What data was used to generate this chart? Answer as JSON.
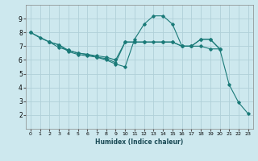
{
  "title": "",
  "xlabel": "Humidex (Indice chaleur)",
  "xlim": [
    -0.5,
    23.5
  ],
  "ylim": [
    1,
    10
  ],
  "xticks": [
    0,
    1,
    2,
    3,
    4,
    5,
    6,
    7,
    8,
    9,
    10,
    11,
    12,
    13,
    14,
    15,
    16,
    17,
    18,
    19,
    20,
    21,
    22,
    23
  ],
  "yticks": [
    2,
    3,
    4,
    5,
    6,
    7,
    8,
    9
  ],
  "bg_color": "#cde8ee",
  "grid_color": "#b0d0d8",
  "line_color": "#1a7a78",
  "lines": [
    {
      "x": [
        0,
        1,
        2,
        3,
        4,
        5,
        6,
        7,
        8,
        9,
        10,
        11,
        12,
        13,
        14,
        15,
        16,
        17,
        18,
        19,
        20,
        21,
        22,
        23
      ],
      "y": [
        8.0,
        7.6,
        7.3,
        6.9,
        6.7,
        6.5,
        6.4,
        6.2,
        6.0,
        5.7,
        5.5,
        7.5,
        8.6,
        9.2,
        9.2,
        8.6,
        7.0,
        7.0,
        7.0,
        6.8,
        6.8,
        4.2,
        2.9,
        2.1
      ]
    },
    {
      "x": [
        0,
        2,
        3,
        4,
        5,
        6,
        7,
        8,
        9,
        10,
        11,
        12,
        13,
        14,
        15,
        16,
        17,
        18,
        19,
        20
      ],
      "y": [
        8.0,
        7.3,
        7.1,
        6.7,
        6.5,
        6.4,
        6.3,
        6.2,
        6.0,
        7.3,
        7.3,
        7.3,
        7.3,
        7.3,
        7.3,
        7.0,
        7.0,
        7.5,
        7.5,
        6.8
      ]
    },
    {
      "x": [
        2,
        3,
        4,
        5,
        6,
        7,
        8,
        9,
        10,
        11,
        12,
        14,
        15,
        16,
        17,
        18,
        19,
        20
      ],
      "y": [
        7.3,
        7.1,
        6.6,
        6.4,
        6.3,
        6.2,
        6.1,
        5.8,
        7.3,
        7.3,
        7.3,
        7.3,
        7.3,
        7.0,
        7.0,
        7.5,
        7.5,
        6.8
      ]
    }
  ]
}
